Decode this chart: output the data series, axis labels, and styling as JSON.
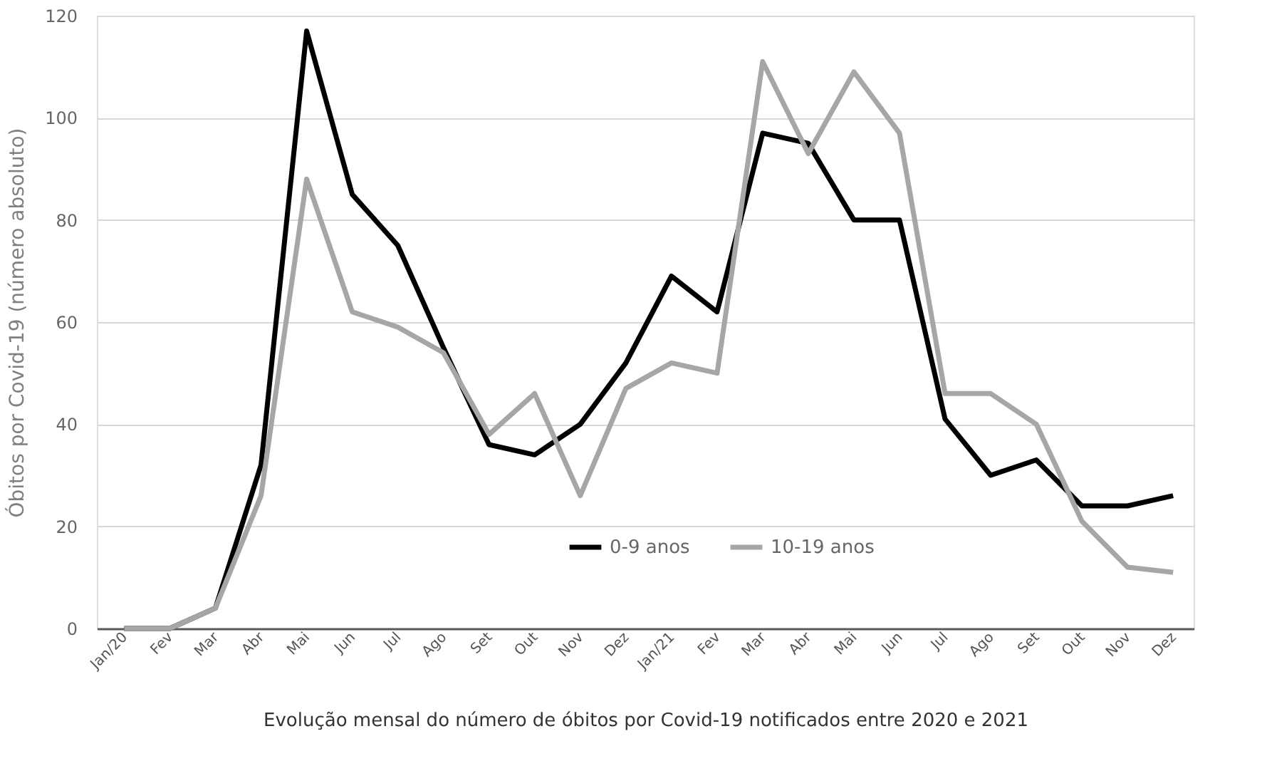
{
  "chart_data": {
    "type": "line",
    "xlabel": "Evolução mensal do número de óbitos por Covid-19 notificados entre 2020 e 2021",
    "ylabel": "Óbitos por Covid-19 (número absoluto)",
    "categories": [
      "Jan/20",
      "Fev",
      "Mar",
      "Abr",
      "Mai",
      "Jun",
      "Jul",
      "Ago",
      "Set",
      "Out",
      "Nov",
      "Dez",
      "Jan/21",
      "Fev",
      "Mar",
      "Abr",
      "Mai",
      "Jun",
      "Jul",
      "Ago",
      "Set",
      "Out",
      "Nov",
      "Dez"
    ],
    "series": [
      {
        "name": "0-9 anos",
        "color": "#000000",
        "values": [
          0,
          0,
          4,
          32,
          117,
          85,
          75,
          55,
          36,
          34,
          40,
          52,
          69,
          62,
          97,
          95,
          80,
          80,
          41,
          30,
          33,
          24,
          24,
          26
        ]
      },
      {
        "name": "10-19 anos",
        "color": "#a6a6a6",
        "values": [
          0,
          0,
          4,
          26,
          88,
          62,
          59,
          54,
          38,
          46,
          26,
          47,
          52,
          50,
          111,
          93,
          109,
          97,
          46,
          46,
          40,
          21,
          12,
          11
        ]
      }
    ],
    "ylim": [
      0,
      120
    ],
    "yticks": [
      0,
      20,
      40,
      60,
      80,
      100,
      120
    ],
    "grid": "y",
    "legend": "bottom",
    "marker": "none",
    "line_style": "solid"
  }
}
